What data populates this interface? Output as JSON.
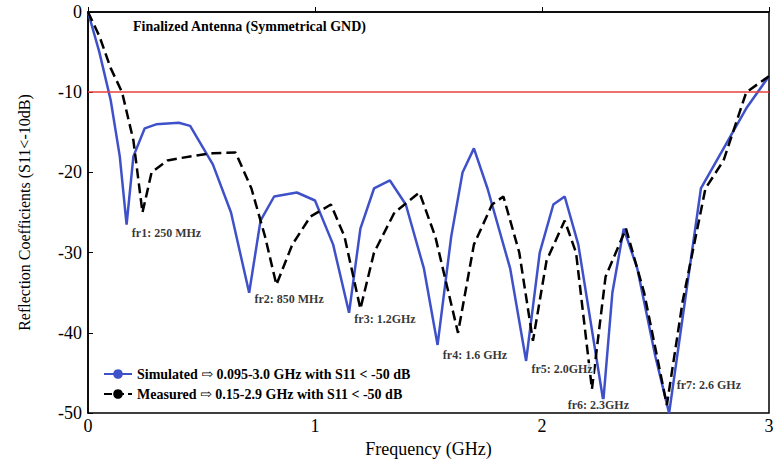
{
  "chart_data": {
    "type": "line",
    "title": "Finalized Antenna (Symmetrical GND)",
    "x_label": "Frequency (GHz)",
    "y_label": "Reflection Coefficients (S11<-10dB)",
    "xlim": [
      0,
      3
    ],
    "xticks": [
      0,
      1,
      2,
      3
    ],
    "ylim": [
      -50,
      0
    ],
    "yticks": [
      -50,
      -40,
      -30,
      -20,
      -10,
      0
    ],
    "grid": false,
    "legend": "lower left",
    "reference_line": {
      "y": -10,
      "color": "#e8413c"
    },
    "series": [
      {
        "name": "Simulated ⇨ 0.095-3.0 GHz with S11 < -50 dB",
        "color": "#3f51c9",
        "line_style": "solid",
        "x": [
          0,
          0.05,
          0.1,
          0.14,
          0.17,
          0.2,
          0.25,
          0.3,
          0.4,
          0.45,
          0.55,
          0.63,
          0.71,
          0.76,
          0.82,
          0.92,
          1.0,
          1.08,
          1.15,
          1.2,
          1.26,
          1.33,
          1.4,
          1.48,
          1.54,
          1.6,
          1.65,
          1.7,
          1.76,
          1.86,
          1.93,
          1.99,
          2.05,
          2.1,
          2.16,
          2.27,
          2.31,
          2.36,
          2.42,
          2.5,
          2.56,
          2.62,
          2.7,
          2.8,
          2.9,
          3.0
        ],
        "values": [
          0,
          -5,
          -11,
          -18,
          -26.5,
          -18,
          -14.5,
          -14,
          -13.8,
          -14.2,
          -19,
          -25,
          -35,
          -26,
          -23,
          -22.5,
          -23.5,
          -29,
          -37.5,
          -27,
          -22,
          -21,
          -24,
          -32,
          -41.5,
          -28,
          -20,
          -17,
          -22,
          -32,
          -43.5,
          -30,
          -24,
          -23,
          -29,
          -48.5,
          -35,
          -27,
          -32,
          -43,
          -50,
          -38,
          -22,
          -17,
          -12,
          -8
        ]
      },
      {
        "name": "Measured ⇨ 0.15-2.9 GHz with S11 < -50 dB",
        "color": "#000000",
        "line_style": "dashed",
        "x": [
          0,
          0.05,
          0.1,
          0.15,
          0.2,
          0.24,
          0.28,
          0.35,
          0.45,
          0.55,
          0.65,
          0.72,
          0.78,
          0.83,
          0.9,
          0.98,
          1.07,
          1.13,
          1.2,
          1.26,
          1.35,
          1.46,
          1.53,
          1.63,
          1.7,
          1.78,
          1.83,
          1.9,
          1.96,
          2.02,
          2.1,
          2.15,
          2.22,
          2.28,
          2.37,
          2.45,
          2.55,
          2.62,
          2.72,
          2.8,
          2.9,
          3.0
        ],
        "values": [
          0,
          -3,
          -7,
          -10,
          -16,
          -25,
          -20,
          -18.5,
          -18,
          -17.6,
          -17.5,
          -22,
          -28,
          -34,
          -29,
          -25.5,
          -24,
          -28,
          -37,
          -30,
          -25,
          -22.5,
          -28,
          -40,
          -29,
          -24,
          -23,
          -30,
          -41,
          -31,
          -26,
          -30,
          -47,
          -33,
          -27,
          -35,
          -49,
          -36,
          -22,
          -18.5,
          -10,
          -8
        ]
      }
    ],
    "annotations": [
      {
        "text": "fr1: 250 MHz",
        "x": 0.18,
        "y": -27.5
      },
      {
        "text": "fr2: 850 MHz",
        "x": 0.72,
        "y": -35.8
      },
      {
        "text": "fr3: 1.2GHz",
        "x": 1.16,
        "y": -38.3
      },
      {
        "text": "fr4: 1.6 GHz",
        "x": 1.55,
        "y": -42.8
      },
      {
        "text": "fr5: 2.0GHz",
        "x": 1.94,
        "y": -44.5
      },
      {
        "text": "fr6: 2.3GHz",
        "x": 2.1,
        "y": -49
      },
      {
        "text": "fr7: 2.6 GHz",
        "x": 2.58,
        "y": -46.5
      }
    ]
  }
}
